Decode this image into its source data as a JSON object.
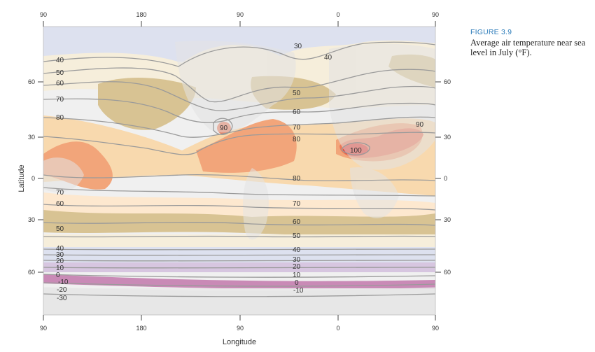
{
  "caption": {
    "figure_label": "FIGURE 3.9",
    "text": "Average air temperature near sea level in July (°F)."
  },
  "axes": {
    "top_ticks": [
      "90",
      "180",
      "90",
      "0",
      "90"
    ],
    "bottom_ticks": [
      "90",
      "180",
      "90",
      "0",
      "90"
    ],
    "left_ticks": [
      "60",
      "30",
      "0",
      "30",
      "60"
    ],
    "right_ticks": [
      "60",
      "30",
      "0",
      "30",
      "60"
    ],
    "x_title": "Longitude",
    "y_title": "Latitude"
  },
  "contour_labels": {
    "west_column": [
      "40",
      "50",
      "60",
      "70",
      "80",
      "70",
      "60",
      "50",
      "40",
      "30",
      "20",
      "10",
      "0",
      "-10",
      "-20",
      "-30"
    ],
    "mid_column": [
      "30",
      "40",
      "50",
      "60",
      "70",
      "80",
      "80",
      "70",
      "60",
      "50",
      "40",
      "30",
      "20",
      "10",
      "0",
      "-10"
    ],
    "hot_spots": [
      "90",
      "90",
      "100"
    ]
  },
  "colors": {
    "cold_band_pink": "#c98ab6",
    "cold_band_purple": "#d7c6e0",
    "cool_blue": "#dde1ef",
    "mild_cream": "#f6eedb",
    "warm_tan": "#d8c393",
    "warm_peach": "#f8d9ae",
    "hot_orange": "#f2a57a",
    "very_hot": "#eb7a5a",
    "hottest": "#df3b33",
    "land": "#e6e6e6",
    "isotherm_line": "#9a9a9a",
    "caption_blue": "#2b7bb9"
  }
}
